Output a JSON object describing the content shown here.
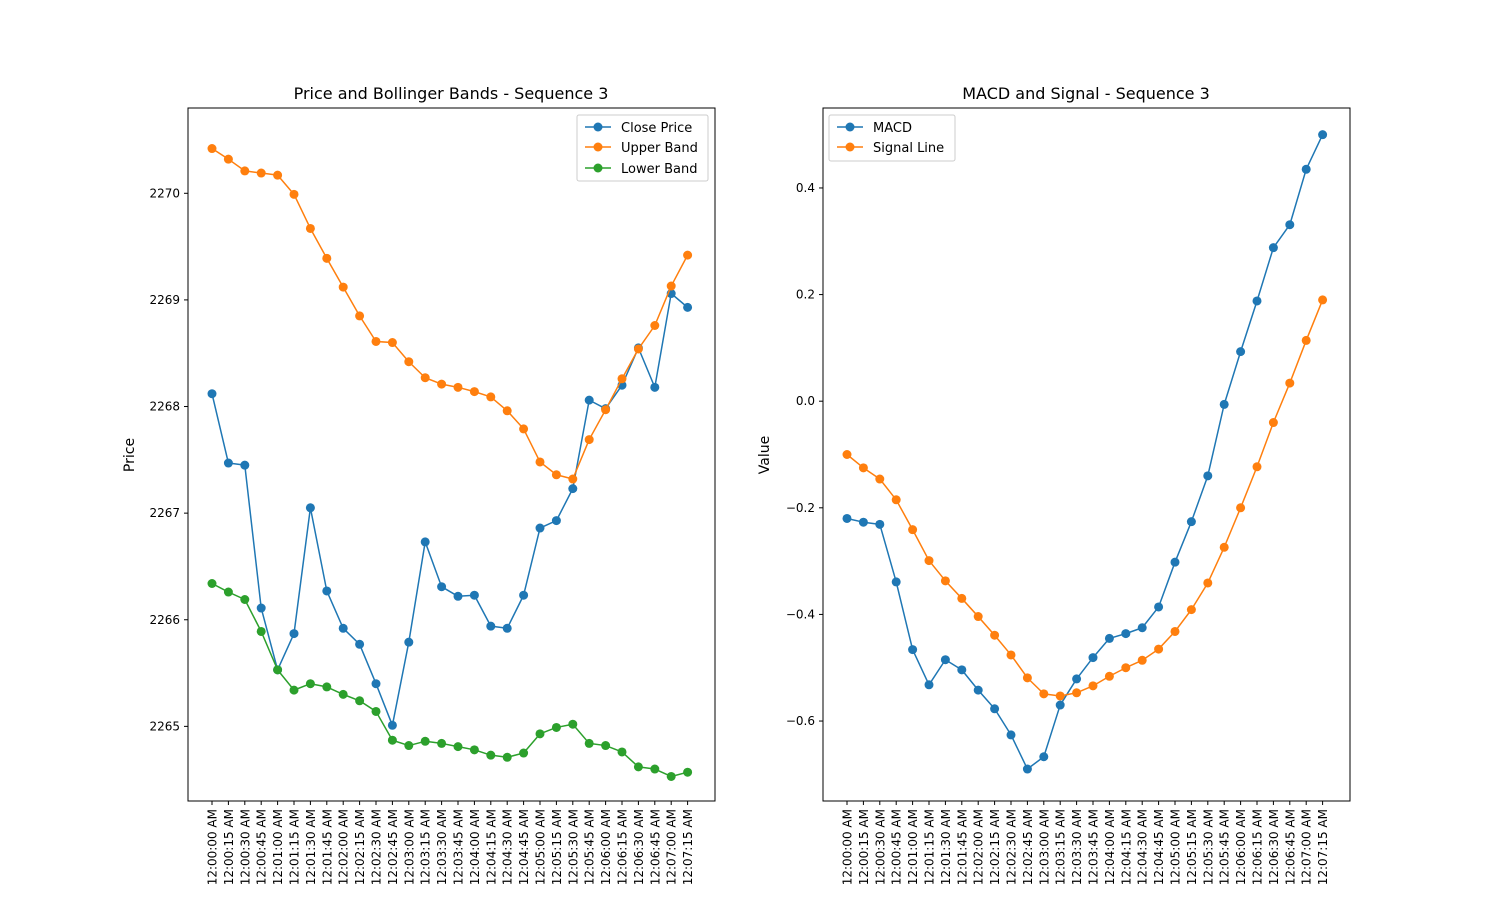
{
  "chart_data": [
    {
      "type": "line",
      "title": "Price and Bollinger Bands - Sequence 3",
      "xlabel": "",
      "ylabel": "Price",
      "ylim": [
        2264.3,
        2270.8
      ],
      "yticks": [
        2265,
        2266,
        2267,
        2268,
        2269,
        2270
      ],
      "legend_position": "top-right",
      "categories": [
        "12:00:00 AM",
        "12:00:15 AM",
        "12:00:30 AM",
        "12:00:45 AM",
        "12:01:00 AM",
        "12:01:15 AM",
        "12:01:30 AM",
        "12:01:45 AM",
        "12:02:00 AM",
        "12:02:15 AM",
        "12:02:30 AM",
        "12:02:45 AM",
        "12:03:00 AM",
        "12:03:15 AM",
        "12:03:30 AM",
        "12:03:45 AM",
        "12:04:00 AM",
        "12:04:15 AM",
        "12:04:30 AM",
        "12:04:45 AM",
        "12:05:00 AM",
        "12:05:15 AM",
        "12:05:30 AM",
        "12:05:45 AM",
        "12:06:00 AM",
        "12:06:15 AM",
        "12:06:30 AM",
        "12:06:45 AM",
        "12:07:00 AM",
        "12:07:15 AM"
      ],
      "series": [
        {
          "name": "Close Price",
          "color": "#1f77b4",
          "values": [
            2268.12,
            2267.47,
            2267.45,
            2266.11,
            2265.53,
            2265.87,
            2267.05,
            2266.27,
            2265.92,
            2265.77,
            2265.4,
            2265.01,
            2265.79,
            2266.73,
            2266.31,
            2266.22,
            2266.23,
            2265.94,
            2265.92,
            2266.23,
            2266.86,
            2266.93,
            2267.23,
            2268.06,
            2267.98,
            2268.2,
            2268.55,
            2268.18,
            2269.06,
            2268.93
          ]
        },
        {
          "name": "Upper Band",
          "color": "#ff7f0e",
          "values": [
            2270.42,
            2270.32,
            2270.21,
            2270.19,
            2270.17,
            2269.99,
            2269.67,
            2269.39,
            2269.12,
            2268.85,
            2268.61,
            2268.6,
            2268.42,
            2268.27,
            2268.21,
            2268.18,
            2268.14,
            2268.09,
            2267.96,
            2267.79,
            2267.48,
            2267.36,
            2267.32,
            2267.69,
            2267.97,
            2268.26,
            2268.54,
            2268.76,
            2269.13,
            2269.42
          ]
        },
        {
          "name": "Lower Band",
          "color": "#2ca02c",
          "values": [
            2266.34,
            2266.26,
            2266.19,
            2265.89,
            2265.53,
            2265.34,
            2265.4,
            2265.37,
            2265.3,
            2265.24,
            2265.14,
            2264.87,
            2264.82,
            2264.86,
            2264.84,
            2264.81,
            2264.78,
            2264.73,
            2264.71,
            2264.75,
            2264.93,
            2264.99,
            2265.02,
            2264.84,
            2264.82,
            2264.76,
            2264.62,
            2264.6,
            2264.53,
            2264.57
          ]
        }
      ]
    },
    {
      "type": "line",
      "title": "MACD and Signal - Sequence 3",
      "xlabel": "",
      "ylabel": "Value",
      "ylim": [
        -0.75,
        0.55
      ],
      "yticks": [
        -0.6,
        -0.4,
        -0.2,
        0.0,
        0.2,
        0.4
      ],
      "ytick_labels": [
        "−0.6",
        "−0.4",
        "−0.2",
        "0.0",
        "0.2",
        "0.4"
      ],
      "legend_position": "top-left",
      "categories": [
        "12:00:00 AM",
        "12:00:15 AM",
        "12:00:30 AM",
        "12:00:45 AM",
        "12:01:00 AM",
        "12:01:15 AM",
        "12:01:30 AM",
        "12:01:45 AM",
        "12:02:00 AM",
        "12:02:15 AM",
        "12:02:30 AM",
        "12:02:45 AM",
        "12:03:00 AM",
        "12:03:15 AM",
        "12:03:30 AM",
        "12:03:45 AM",
        "12:04:00 AM",
        "12:04:15 AM",
        "12:04:30 AM",
        "12:04:45 AM",
        "12:05:00 AM",
        "12:05:15 AM",
        "12:05:30 AM",
        "12:05:45 AM",
        "12:06:00 AM",
        "12:06:15 AM",
        "12:06:30 AM",
        "12:06:45 AM",
        "12:07:00 AM",
        "12:07:15 AM"
      ],
      "series": [
        {
          "name": "MACD",
          "color": "#1f77b4",
          "values": [
            -0.22,
            -0.227,
            -0.231,
            -0.339,
            -0.466,
            -0.532,
            -0.485,
            -0.504,
            -0.542,
            -0.577,
            -0.626,
            -0.69,
            -0.667,
            -0.57,
            -0.521,
            -0.481,
            -0.445,
            -0.436,
            -0.425,
            -0.386,
            -0.302,
            -0.226,
            -0.14,
            -0.006,
            0.093,
            0.188,
            0.288,
            0.331,
            0.435,
            0.5
          ]
        },
        {
          "name": "Signal Line",
          "color": "#ff7f0e",
          "values": [
            -0.1,
            -0.125,
            -0.146,
            -0.185,
            -0.241,
            -0.299,
            -0.337,
            -0.37,
            -0.404,
            -0.439,
            -0.476,
            -0.519,
            -0.549,
            -0.553,
            -0.547,
            -0.534,
            -0.516,
            -0.5,
            -0.486,
            -0.465,
            -0.432,
            -0.391,
            -0.341,
            -0.274,
            -0.2,
            -0.123,
            -0.04,
            0.034,
            0.114,
            0.19
          ]
        }
      ]
    }
  ]
}
